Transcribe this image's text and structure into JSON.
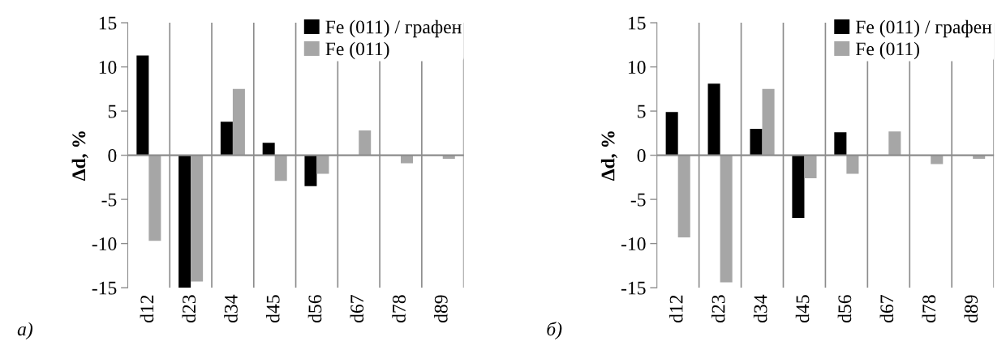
{
  "chart_data": [
    {
      "type": "bar",
      "ylabel": "Δd, %",
      "categories": [
        "d12",
        "d23",
        "d34",
        "d45",
        "d56",
        "d67",
        "d78",
        "d89"
      ],
      "ylim": [
        -15,
        15
      ],
      "yticks": [
        -15,
        -10,
        -5,
        0,
        5,
        10,
        15
      ],
      "grid": "x",
      "legend": "top right",
      "annotations": [
        "a)"
      ],
      "series": [
        {
          "name": "Fe (011) / графен",
          "color": "#000000",
          "values": [
            11.3,
            -15,
            3.8,
            1.4,
            -3.5,
            null,
            null,
            null
          ]
        },
        {
          "name": "Fe (011)",
          "color": "#a6a6a6",
          "values": [
            -9.7,
            -14.3,
            7.5,
            -2.9,
            -2.1,
            2.8,
            -0.9,
            -0.4
          ]
        }
      ]
    },
    {
      "type": "bar",
      "ylabel": "Δd, %",
      "categories": [
        "d12",
        "d23",
        "d34",
        "d45",
        "d56",
        "d67",
        "d78",
        "d89"
      ],
      "ylim": [
        -15,
        15
      ],
      "yticks": [
        -15,
        -10,
        -5,
        0,
        5,
        10,
        15
      ],
      "grid": "x",
      "legend": "top right",
      "annotations": [
        "б)"
      ],
      "series": [
        {
          "name": "Fe (011) / графен",
          "color": "#000000",
          "values": [
            4.9,
            8.1,
            3.0,
            -7.1,
            2.6,
            null,
            null,
            null
          ]
        },
        {
          "name": "Fe (011)",
          "color": "#a6a6a6",
          "values": [
            -9.3,
            -14.4,
            7.5,
            -2.6,
            -2.1,
            2.7,
            -1.0,
            -0.4
          ]
        }
      ]
    }
  ]
}
